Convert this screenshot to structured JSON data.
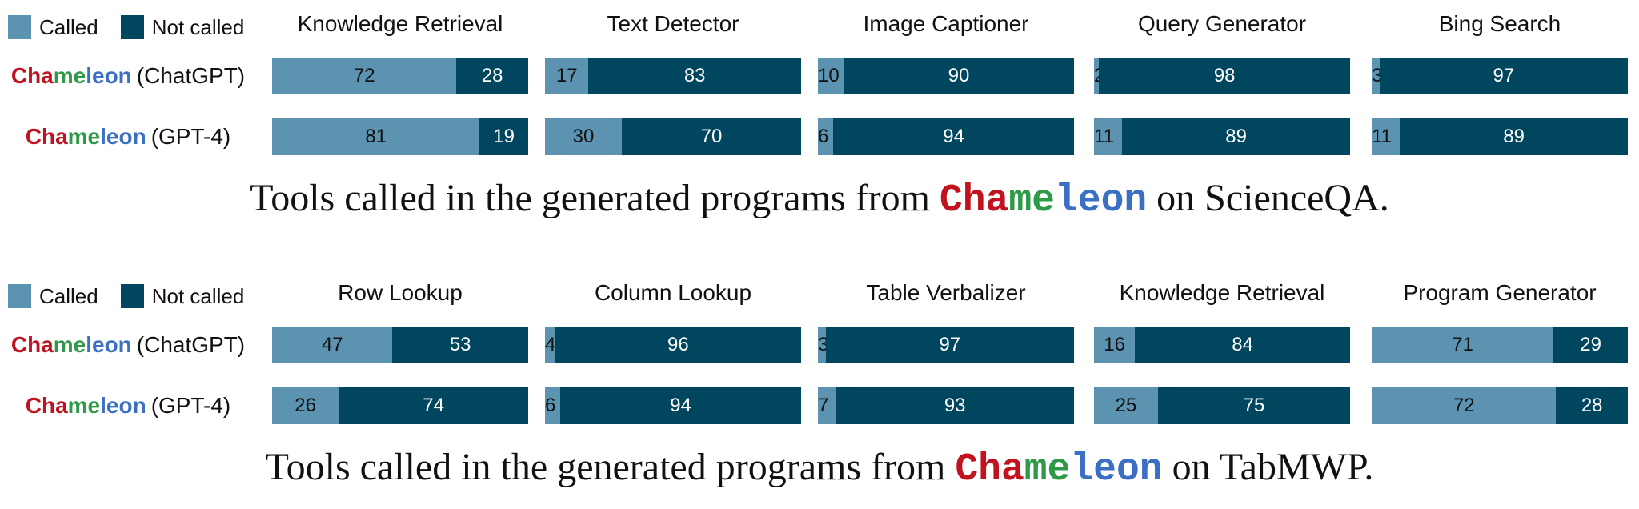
{
  "legend": {
    "called_label": "Called",
    "not_called_label": "Not called"
  },
  "colors": {
    "called": "#5b93b1",
    "not_called": "#00465f",
    "brand_cha": "#c0121f",
    "brand_me": "#2e9a48",
    "brand_leon": "#3a6fc4"
  },
  "brand": {
    "part1": "Cha",
    "part2": "me",
    "part3": "leon"
  },
  "row_labels": {
    "chatgpt": "(ChatGPT)",
    "gpt4": "(GPT-4)"
  },
  "captions": {
    "top_prefix": "Tools called in the generated programs from",
    "top_suffix": "on ScienceQA.",
    "bottom_prefix": "Tools called in the generated programs from",
    "bottom_suffix": "on TabMWP."
  },
  "chart_data": [
    {
      "type": "bar",
      "dataset": "ScienceQA",
      "categories": [
        "Knowledge Retrieval",
        "Text Detector",
        "Image Captioner",
        "Query Generator",
        "Bing Search"
      ],
      "series": [
        {
          "name": "Chameleon (ChatGPT)",
          "called": [
            72,
            17,
            10,
            2,
            3
          ],
          "not_called": [
            28,
            83,
            90,
            98,
            97
          ]
        },
        {
          "name": "Chameleon (GPT-4)",
          "called": [
            81,
            30,
            6,
            11,
            11
          ],
          "not_called": [
            19,
            70,
            94,
            89,
            89
          ]
        }
      ],
      "stacked": true,
      "orientation": "horizontal",
      "ylim": [
        0,
        100
      ]
    },
    {
      "type": "bar",
      "dataset": "TabMWP",
      "categories": [
        "Row Lookup",
        "Column Lookup",
        "Table Verbalizer",
        "Knowledge Retrieval",
        "Program Generator"
      ],
      "series": [
        {
          "name": "Chameleon (ChatGPT)",
          "called": [
            47,
            4,
            3,
            16,
            71
          ],
          "not_called": [
            53,
            96,
            97,
            84,
            29
          ]
        },
        {
          "name": "Chameleon (GPT-4)",
          "called": [
            26,
            6,
            7,
            25,
            72
          ],
          "not_called": [
            74,
            94,
            93,
            75,
            28
          ]
        }
      ],
      "stacked": true,
      "orientation": "horizontal",
      "ylim": [
        0,
        100
      ]
    }
  ]
}
